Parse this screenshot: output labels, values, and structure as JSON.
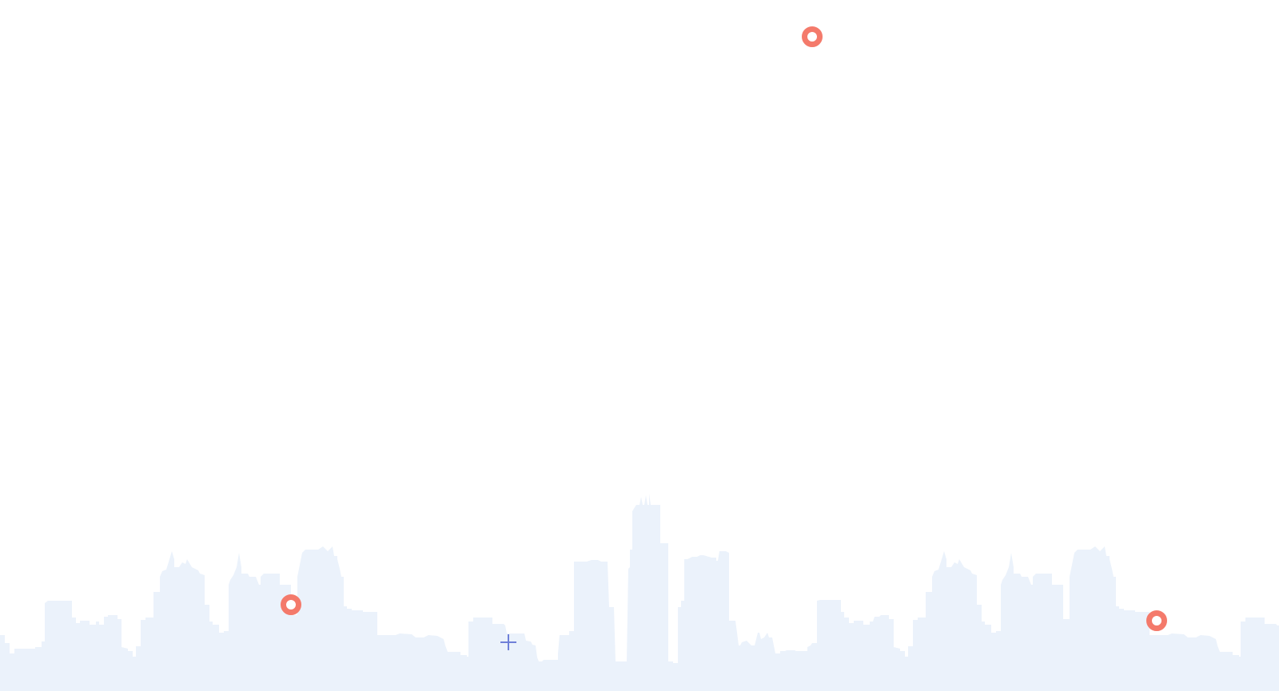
{
  "colors": {
    "background": "#ffffff",
    "skyline": "#ebf2fb",
    "ring": "#f47a6b",
    "plus": "#6f80d8"
  },
  "icons": {
    "ring": "ring-icon",
    "plus": "plus-icon",
    "skyline": "city-skyline-silhouette"
  }
}
